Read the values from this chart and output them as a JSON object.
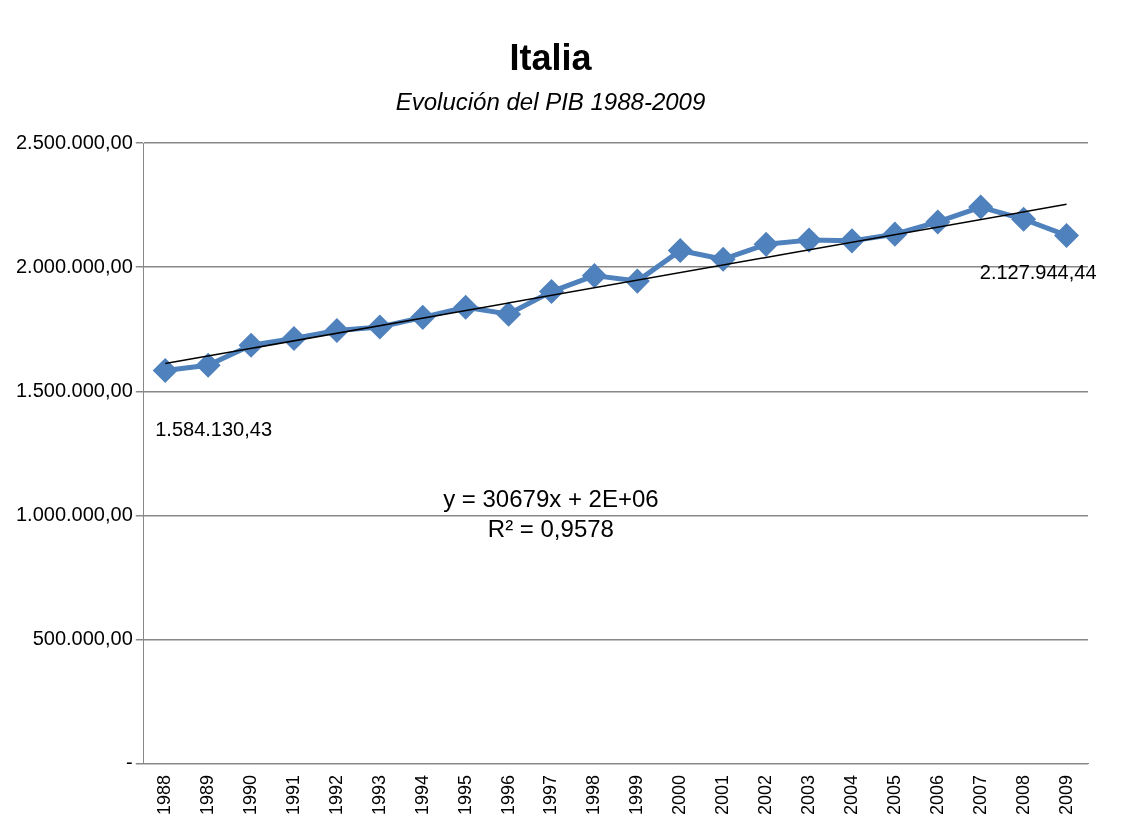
{
  "chart_data": {
    "type": "line",
    "title": "Italia",
    "subtitle": "Evolución del PIB 1988-2009",
    "categories": [
      "1988",
      "1989",
      "1990",
      "1991",
      "1992",
      "1993",
      "1994",
      "1995",
      "1996",
      "1997",
      "1998",
      "1999",
      "2000",
      "2001",
      "2002",
      "2003",
      "2004",
      "2005",
      "2006",
      "2007",
      "2008",
      "2009"
    ],
    "series": [
      {
        "color": "#4f81bd",
        "marker": "diamond",
        "values": [
          1584130.43,
          1605000,
          1686000,
          1713000,
          1745000,
          1759000,
          1798000,
          1839000,
          1811000,
          1902000,
          1966000,
          1944000,
          2067000,
          2032000,
          2092000,
          2109000,
          2106000,
          2133000,
          2182000,
          2242000,
          2193000,
          2127944.44
        ],
        "value_labels": [
          "1.584.130,43",
          null,
          null,
          null,
          null,
          null,
          null,
          null,
          null,
          null,
          null,
          null,
          null,
          null,
          null,
          null,
          null,
          null,
          null,
          null,
          null,
          "2.127.944,44"
        ]
      },
      {
        "type": "line",
        "color": "#000000",
        "marker": "none",
        "values": [
          1612000,
          null,
          null,
          null,
          null,
          null,
          null,
          null,
          null,
          null,
          null,
          null,
          null,
          null,
          null,
          null,
          null,
          null,
          null,
          null,
          null,
          2253000
        ]
      }
    ],
    "ylim": [
      0,
      2500000
    ],
    "yticks": [
      {
        "value": 0,
        "label": "-"
      },
      {
        "value": 500000,
        "label": "500.000,00"
      },
      {
        "value": 1000000,
        "label": "1.000.000,00"
      },
      {
        "value": 1500000,
        "label": "1.500.000,00"
      },
      {
        "value": 2000000,
        "label": "2.000.000,00"
      },
      {
        "value": 2500000,
        "label": "2.500.000,00"
      }
    ],
    "grid": "y",
    "legend": false,
    "line_style": "solid",
    "annotations": [
      "y = 30679x + 2E+06",
      "R² = 0,9578"
    ]
  }
}
